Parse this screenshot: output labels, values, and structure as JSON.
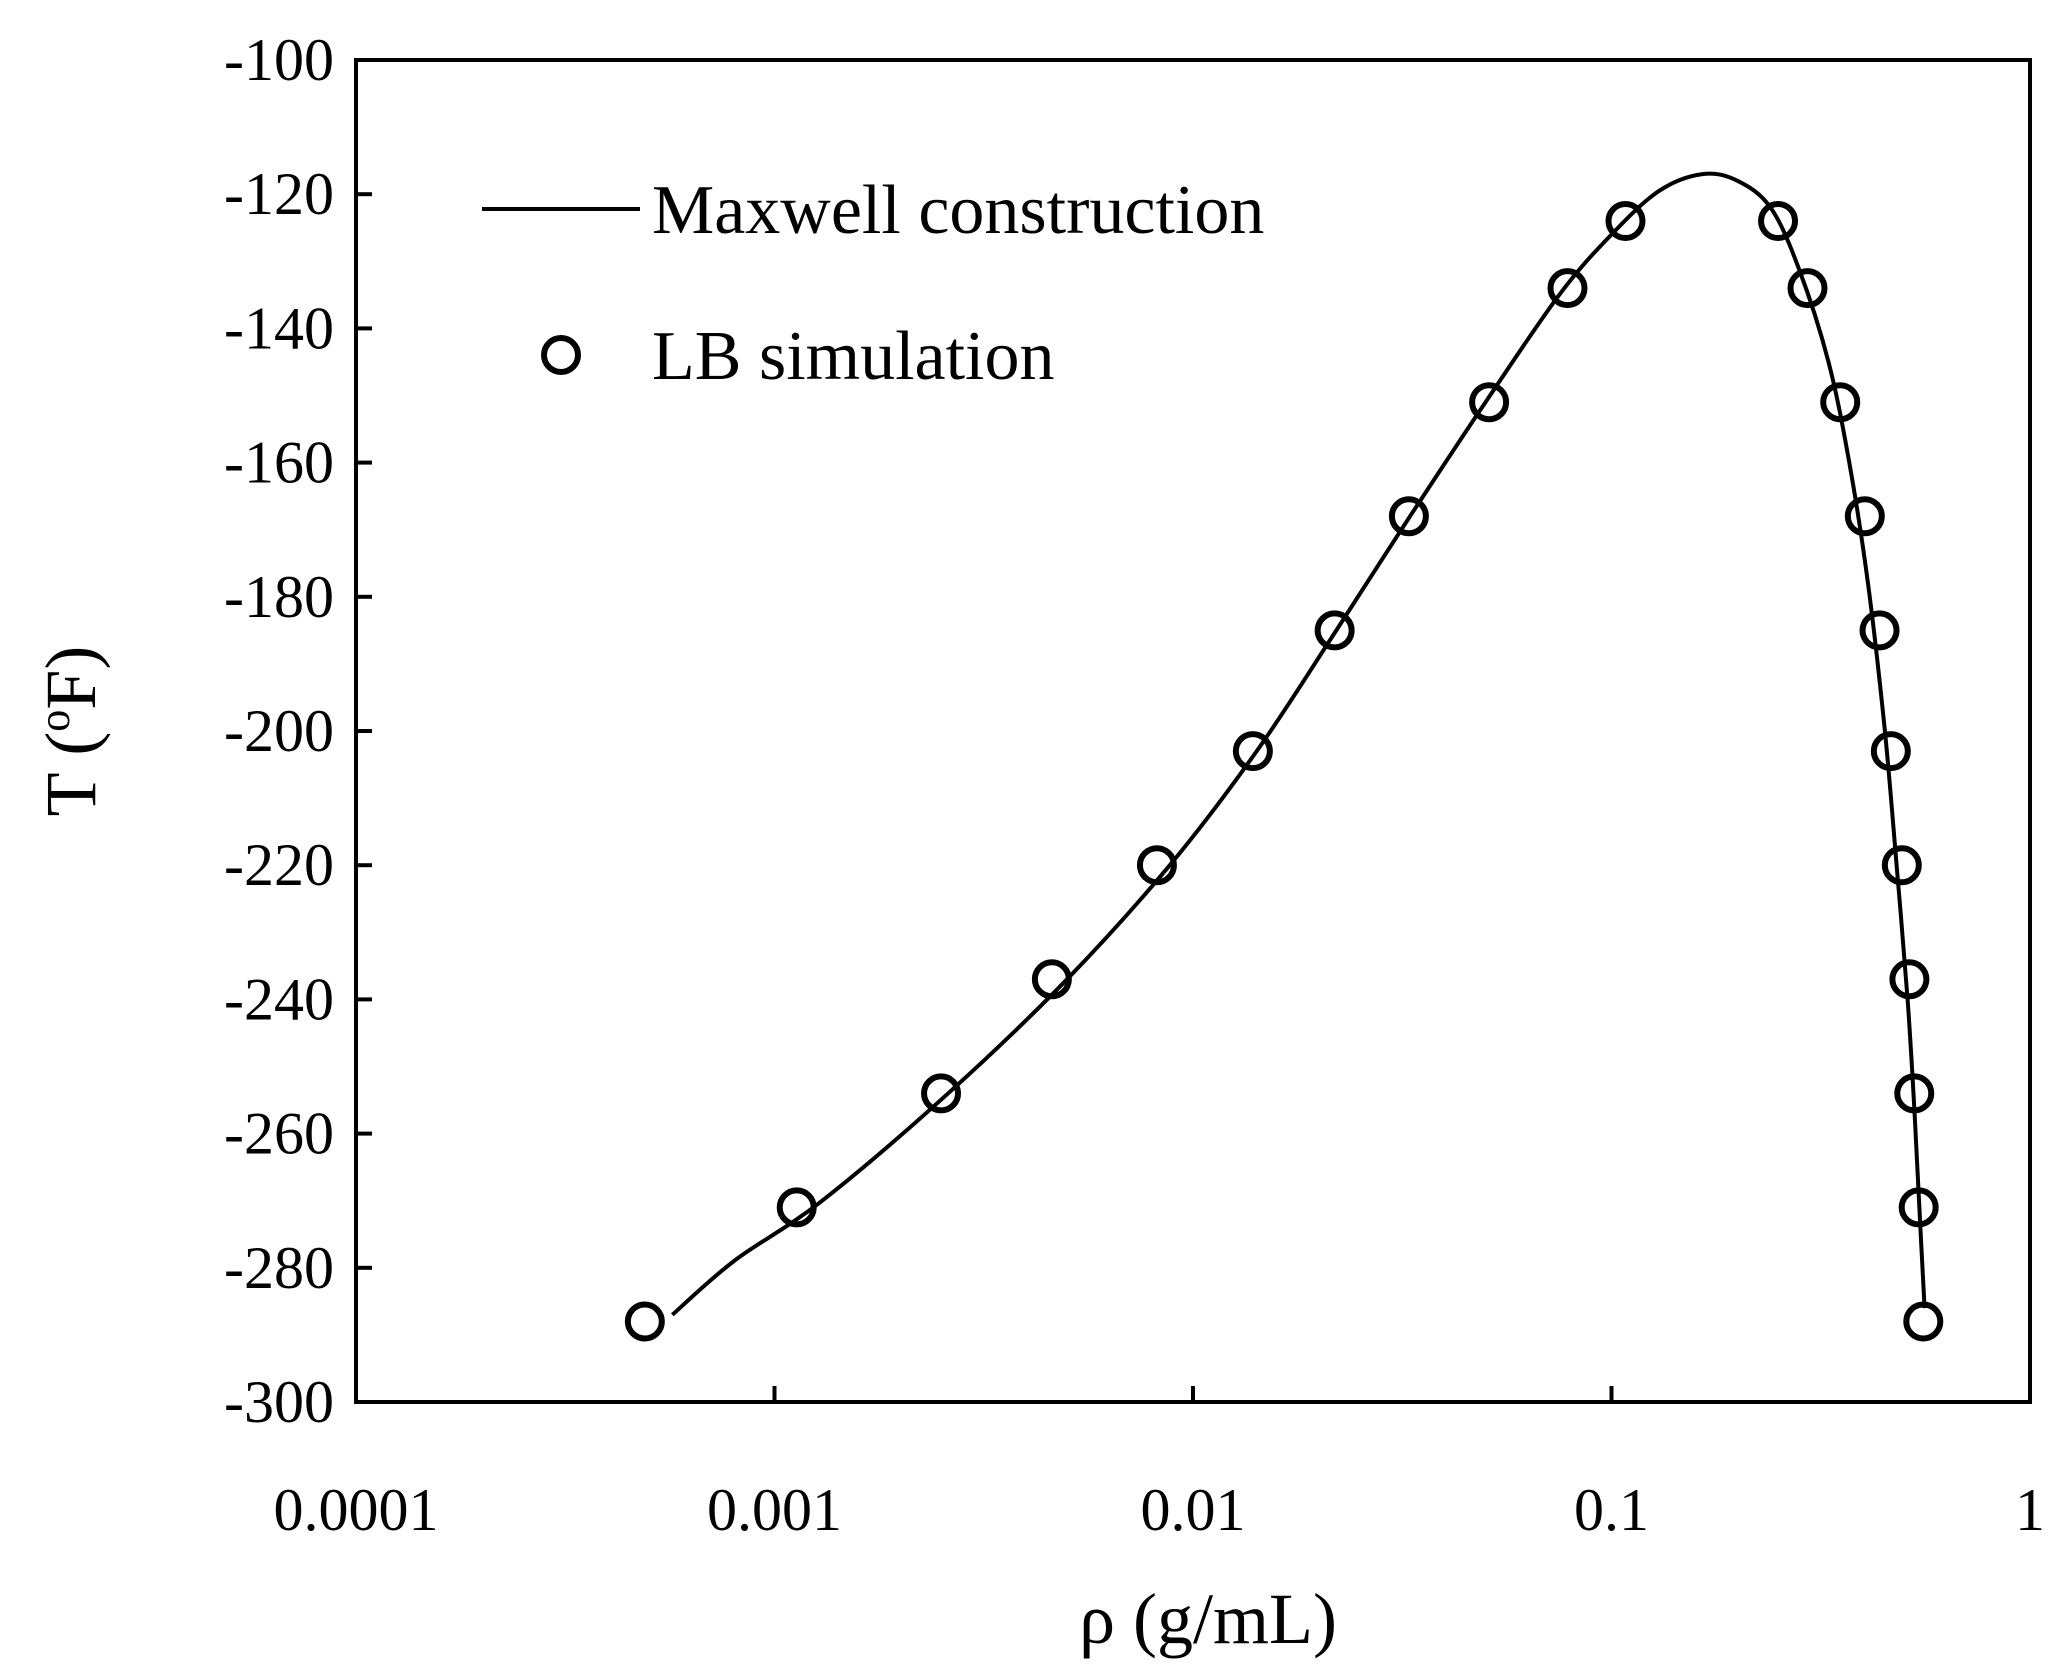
{
  "chart_data": {
    "type": "line+scatter",
    "title": "",
    "xlabel": "ρ (g/mL)",
    "ylabel_main": "T (",
    "ylabel_sup": "o",
    "ylabel_end": "F)",
    "x_scale": "log",
    "xlim": [
      0.0001,
      1
    ],
    "ylim": [
      -300,
      -100
    ],
    "x_ticks": [
      0.0001,
      0.001,
      0.01,
      0.1,
      1
    ],
    "x_tick_labels": [
      "0.0001",
      "0.001",
      "0.01",
      "0.1",
      "1"
    ],
    "y_ticks": [
      -100,
      -120,
      -140,
      -160,
      -180,
      -200,
      -220,
      -240,
      -260,
      -280,
      -300
    ],
    "y_tick_labels": [
      "-100",
      "-120",
      "-140",
      "-160",
      "-180",
      "-200",
      "-220",
      "-240",
      "-260",
      "-280",
      "-300"
    ],
    "grid": false,
    "legend_position": "top-left",
    "series": [
      {
        "name": "Maxwell construction",
        "kind": "line",
        "color": "#000000",
        "points": [
          {
            "x": 0.00057,
            "y": -287
          },
          {
            "x": 0.0008,
            "y": -279
          },
          {
            "x": 0.0013,
            "y": -270
          },
          {
            "x": 0.0026,
            "y": -254
          },
          {
            "x": 0.005,
            "y": -237
          },
          {
            "x": 0.0088,
            "y": -220
          },
          {
            "x": 0.0142,
            "y": -203
          },
          {
            "x": 0.022,
            "y": -185
          },
          {
            "x": 0.033,
            "y": -168
          },
          {
            "x": 0.05,
            "y": -151
          },
          {
            "x": 0.075,
            "y": -135
          },
          {
            "x": 0.1,
            "y": -126
          },
          {
            "x": 0.13,
            "y": -119.5
          },
          {
            "x": 0.165,
            "y": -117
          },
          {
            "x": 0.2,
            "y": -118
          },
          {
            "x": 0.24,
            "y": -122
          },
          {
            "x": 0.28,
            "y": -131
          },
          {
            "x": 0.33,
            "y": -145
          },
          {
            "x": 0.37,
            "y": -160
          },
          {
            "x": 0.41,
            "y": -178
          },
          {
            "x": 0.45,
            "y": -200
          },
          {
            "x": 0.48,
            "y": -220
          },
          {
            "x": 0.51,
            "y": -240
          },
          {
            "x": 0.53,
            "y": -257
          },
          {
            "x": 0.545,
            "y": -272
          },
          {
            "x": 0.56,
            "y": -286
          }
        ]
      },
      {
        "name": "LB simulation",
        "kind": "scatter",
        "marker": "open-circle",
        "color": "#000000",
        "points": [
          {
            "x": 0.00049,
            "y": -288
          },
          {
            "x": 0.00113,
            "y": -271
          },
          {
            "x": 0.0025,
            "y": -254
          },
          {
            "x": 0.0046,
            "y": -237
          },
          {
            "x": 0.0082,
            "y": -220
          },
          {
            "x": 0.0139,
            "y": -203
          },
          {
            "x": 0.0218,
            "y": -185
          },
          {
            "x": 0.0328,
            "y": -168
          },
          {
            "x": 0.051,
            "y": -151
          },
          {
            "x": 0.0785,
            "y": -134
          },
          {
            "x": 0.108,
            "y": -124
          },
          {
            "x": 0.25,
            "y": -124
          },
          {
            "x": 0.294,
            "y": -134
          },
          {
            "x": 0.352,
            "y": -151
          },
          {
            "x": 0.403,
            "y": -168
          },
          {
            "x": 0.437,
            "y": -185
          },
          {
            "x": 0.465,
            "y": -203
          },
          {
            "x": 0.494,
            "y": -220
          },
          {
            "x": 0.515,
            "y": -237
          },
          {
            "x": 0.529,
            "y": -254
          },
          {
            "x": 0.542,
            "y": -271
          },
          {
            "x": 0.556,
            "y": -288
          }
        ]
      }
    ]
  }
}
